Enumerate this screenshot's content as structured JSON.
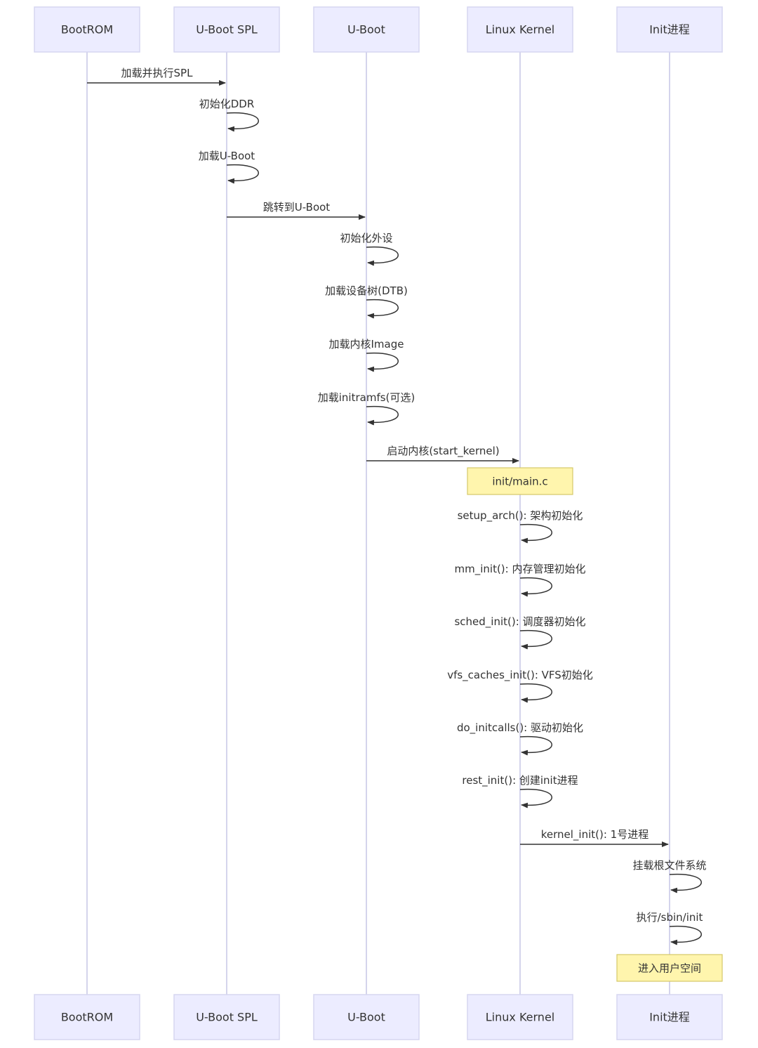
{
  "actors": [
    {
      "id": "bootrom",
      "label": "BootROM"
    },
    {
      "id": "spl",
      "label": "U-Boot SPL"
    },
    {
      "id": "uboot",
      "label": "U-Boot"
    },
    {
      "id": "kernel",
      "label": "Linux Kernel"
    },
    {
      "id": "init",
      "label": "Init进程"
    }
  ],
  "steps": [
    {
      "type": "msg",
      "from": 0,
      "to": 1,
      "label": "加载并执行SPL"
    },
    {
      "type": "self",
      "actor": 1,
      "label": "初始化DDR"
    },
    {
      "type": "self",
      "actor": 1,
      "label": "加载U-Boot"
    },
    {
      "type": "msg",
      "from": 1,
      "to": 2,
      "label": "跳转到U-Boot"
    },
    {
      "type": "self",
      "actor": 2,
      "label": "初始化外设"
    },
    {
      "type": "self",
      "actor": 2,
      "label": "加载设备树(DTB)"
    },
    {
      "type": "self",
      "actor": 2,
      "label": "加载内核Image"
    },
    {
      "type": "self",
      "actor": 2,
      "label": "加载initramfs(可选)"
    },
    {
      "type": "msg",
      "from": 2,
      "to": 3,
      "label": "启动内核(start_kernel)"
    },
    {
      "type": "note",
      "actor": 3,
      "label": "init/main.c"
    },
    {
      "type": "self",
      "actor": 3,
      "label": "setup_arch(): 架构初始化"
    },
    {
      "type": "self",
      "actor": 3,
      "label": "mm_init(): 内存管理初始化"
    },
    {
      "type": "self",
      "actor": 3,
      "label": "sched_init(): 调度器初始化"
    },
    {
      "type": "self",
      "actor": 3,
      "label": "vfs_caches_init(): VFS初始化"
    },
    {
      "type": "self",
      "actor": 3,
      "label": "do_initcalls(): 驱动初始化"
    },
    {
      "type": "self",
      "actor": 3,
      "label": "rest_init(): 创建init进程"
    },
    {
      "type": "msg",
      "from": 3,
      "to": 4,
      "label": "kernel_init(): 1号进程"
    },
    {
      "type": "self",
      "actor": 4,
      "label": "挂载根文件系统"
    },
    {
      "type": "self",
      "actor": 4,
      "label": "执行/sbin/init"
    },
    {
      "type": "note",
      "actor": 4,
      "label": "进入用户空间"
    }
  ]
}
